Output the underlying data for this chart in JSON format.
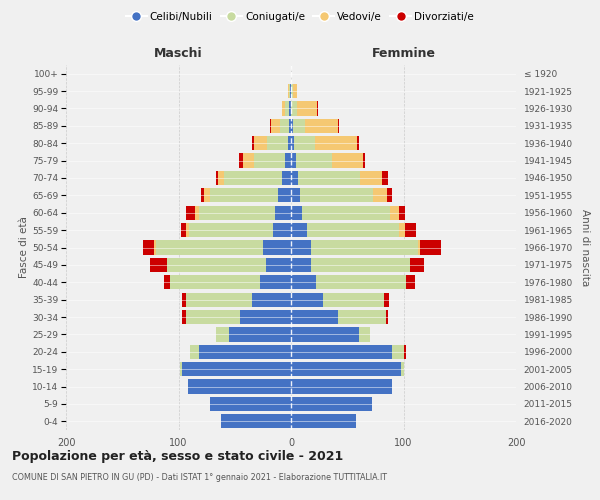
{
  "age_groups": [
    "0-4",
    "5-9",
    "10-14",
    "15-19",
    "20-24",
    "25-29",
    "30-34",
    "35-39",
    "40-44",
    "45-49",
    "50-54",
    "55-59",
    "60-64",
    "65-69",
    "70-74",
    "75-79",
    "80-84",
    "85-89",
    "90-94",
    "95-99",
    "100+"
  ],
  "birth_years": [
    "2016-2020",
    "2011-2015",
    "2006-2010",
    "2001-2005",
    "1996-2000",
    "1991-1995",
    "1986-1990",
    "1981-1985",
    "1976-1980",
    "1971-1975",
    "1966-1970",
    "1961-1965",
    "1956-1960",
    "1951-1955",
    "1946-1950",
    "1941-1945",
    "1936-1940",
    "1931-1935",
    "1926-1930",
    "1921-1925",
    "≤ 1920"
  ],
  "maschi": {
    "celibi": [
      62,
      72,
      92,
      97,
      82,
      55,
      45,
      35,
      28,
      22,
      25,
      16,
      14,
      12,
      8,
      5,
      3,
      2,
      2,
      1,
      0
    ],
    "coniugati": [
      0,
      0,
      0,
      2,
      8,
      12,
      48,
      58,
      80,
      88,
      95,
      75,
      68,
      60,
      52,
      28,
      18,
      8,
      3,
      1,
      0
    ],
    "vedovi": [
      0,
      0,
      0,
      0,
      0,
      0,
      0,
      0,
      0,
      0,
      2,
      2,
      3,
      5,
      5,
      10,
      12,
      8,
      3,
      1,
      0
    ],
    "divorziati": [
      0,
      0,
      0,
      0,
      0,
      0,
      4,
      4,
      5,
      15,
      10,
      5,
      8,
      3,
      2,
      3,
      2,
      1,
      0,
      0,
      0
    ]
  },
  "femmine": {
    "nubili": [
      58,
      72,
      90,
      98,
      90,
      60,
      42,
      28,
      22,
      18,
      18,
      14,
      10,
      8,
      6,
      4,
      3,
      2,
      0,
      0,
      0
    ],
    "coniugate": [
      0,
      0,
      0,
      2,
      10,
      10,
      42,
      55,
      80,
      88,
      95,
      82,
      78,
      65,
      55,
      32,
      18,
      10,
      5,
      2,
      0
    ],
    "vedove": [
      0,
      0,
      0,
      0,
      0,
      0,
      0,
      0,
      0,
      0,
      2,
      5,
      8,
      12,
      20,
      28,
      38,
      30,
      18,
      3,
      0
    ],
    "divorziate": [
      0,
      0,
      0,
      0,
      2,
      0,
      2,
      4,
      8,
      12,
      18,
      10,
      5,
      5,
      5,
      2,
      1,
      1,
      1,
      0,
      0
    ]
  },
  "colors": {
    "celibi_nubili": "#4472C4",
    "coniugati_e": "#c8dba0",
    "vedovi_e": "#f5c872",
    "divorziati_e": "#cc0000"
  },
  "title": "Popolazione per età, sesso e stato civile - 2021",
  "subtitle": "COMUNE DI SAN PIETRO IN GU (PD) - Dati ISTAT 1° gennaio 2021 - Elaborazione TUTTITALIA.IT",
  "xlabel_left": "Maschi",
  "xlabel_right": "Femmine",
  "ylabel_left": "Fasce di età",
  "ylabel_right": "Anni di nascita",
  "xlim": 200,
  "background_color": "#f0f0f0",
  "legend_labels": [
    "Celibi/Nubili",
    "Coniugati/e",
    "Vedovi/e",
    "Divorziati/e"
  ]
}
